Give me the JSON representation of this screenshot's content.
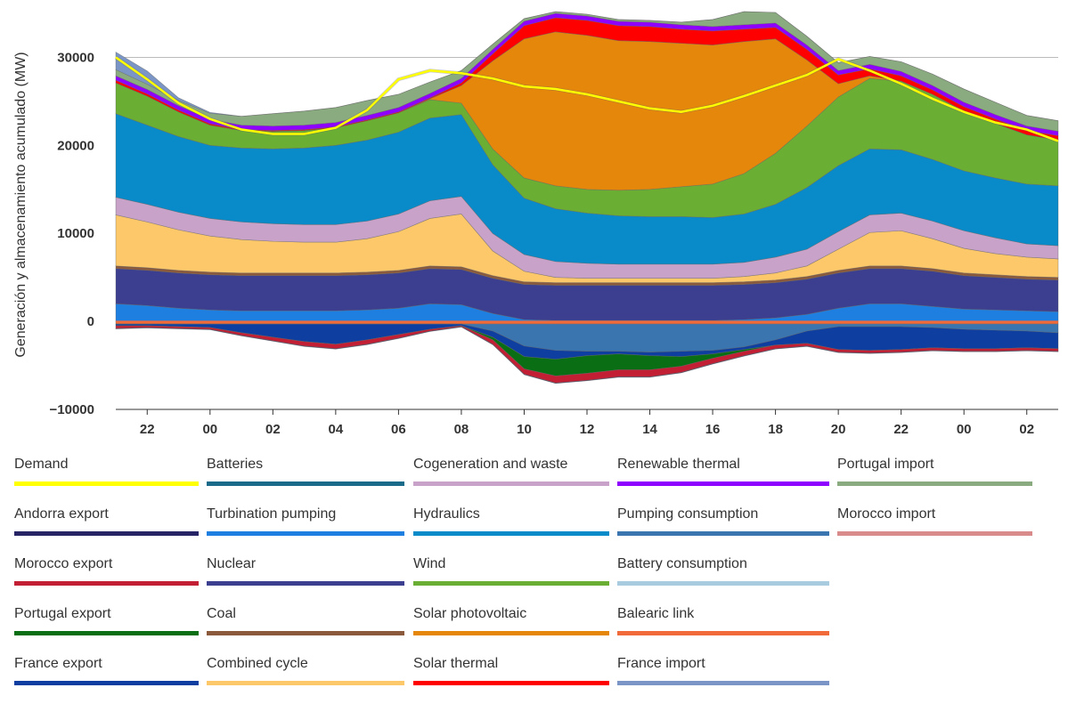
{
  "chart_data": {
    "type": "area",
    "ylabel": "Generación y almacenamiento acumulado (MW)",
    "ylim": [
      -10000,
      35000
    ],
    "grid": "horizontal",
    "yticks": [
      -10000,
      0,
      10000,
      20000,
      30000
    ],
    "ytick_labels": [
      "−10000",
      "0",
      "10000",
      "20000",
      "30000"
    ],
    "xlim": [
      21,
      51
    ],
    "xticks": [
      22,
      24,
      26,
      28,
      30,
      32,
      34,
      36,
      38,
      40,
      42,
      44,
      46,
      48,
      50
    ],
    "xtick_labels": [
      "22",
      "00",
      "02",
      "04",
      "06",
      "08",
      "10",
      "12",
      "14",
      "16",
      "18",
      "20",
      "22",
      "00",
      "02"
    ],
    "x": [
      21,
      22,
      23,
      24,
      25,
      26,
      27,
      28,
      29,
      30,
      31,
      32,
      33,
      34,
      35,
      36,
      37,
      38,
      39,
      40,
      41,
      42,
      43,
      44,
      45,
      46,
      47,
      48,
      49,
      50,
      51
    ],
    "positive_series": [
      {
        "name": "Turbination pumping",
        "color": "#1f7fe0",
        "values": [
          2000,
          1800,
          1500,
          1300,
          1200,
          1200,
          1200,
          1200,
          1300,
          1500,
          2000,
          1900,
          900,
          200,
          100,
          100,
          100,
          100,
          100,
          100,
          200,
          400,
          800,
          1500,
          2000,
          2000,
          1700,
          1400,
          1300,
          1200,
          1100
        ]
      },
      {
        "name": "Nuclear",
        "color": "#3c3f8f",
        "values": [
          4000,
          4000,
          4000,
          4000,
          4000,
          4000,
          4000,
          4000,
          4000,
          4000,
          4000,
          4000,
          4000,
          4000,
          4000,
          4000,
          4000,
          4000,
          4000,
          4000,
          4000,
          4000,
          4000,
          4000,
          4000,
          4000,
          4000,
          3800,
          3700,
          3600,
          3600
        ]
      },
      {
        "name": "Coal",
        "color": "#8b5a3c",
        "values": [
          300,
          300,
          300,
          300,
          300,
          300,
          300,
          300,
          300,
          300,
          300,
          300,
          300,
          300,
          300,
          300,
          300,
          300,
          300,
          300,
          300,
          300,
          300,
          300,
          300,
          300,
          300,
          300,
          300,
          300,
          300
        ]
      },
      {
        "name": "Combined cycle",
        "color": "#fdc86a",
        "values": [
          5800,
          5200,
          4600,
          4100,
          3800,
          3600,
          3500,
          3500,
          3800,
          4400,
          5400,
          6000,
          2800,
          1200,
          600,
          500,
          500,
          500,
          500,
          500,
          600,
          800,
          1200,
          2400,
          3800,
          4000,
          3400,
          2800,
          2400,
          2200,
          2100
        ]
      },
      {
        "name": "Cogeneration and waste",
        "color": "#c8a2c8",
        "values": [
          2000,
          2000,
          2000,
          2000,
          2000,
          2000,
          2000,
          2000,
          2000,
          2000,
          2000,
          2000,
          2000,
          1900,
          1800,
          1700,
          1600,
          1600,
          1600,
          1600,
          1600,
          1800,
          1900,
          2000,
          2000,
          2000,
          2000,
          2000,
          1800,
          1500,
          1500
        ]
      },
      {
        "name": "Hydraulics",
        "color": "#0a8bc9",
        "values": [
          9500,
          9000,
          8600,
          8300,
          8400,
          8500,
          8700,
          9000,
          9200,
          9300,
          9400,
          9300,
          7800,
          6400,
          6000,
          5700,
          5500,
          5400,
          5400,
          5300,
          5500,
          6000,
          7000,
          7500,
          7500,
          7200,
          7000,
          6800,
          6800,
          6800,
          6800
        ]
      },
      {
        "name": "Wind",
        "color": "#6aae33",
        "values": [
          3500,
          3300,
          2800,
          2300,
          2000,
          2000,
          2000,
          2000,
          2200,
          2200,
          2100,
          1300,
          1800,
          2300,
          2600,
          2700,
          2900,
          3100,
          3400,
          3800,
          4600,
          5800,
          7000,
          7800,
          8000,
          7800,
          7400,
          6800,
          6200,
          5600,
          5200
        ]
      },
      {
        "name": "Solar photovoltaic",
        "color": "#e5870a",
        "values": [
          0,
          0,
          0,
          0,
          0,
          0,
          0,
          0,
          0,
          0,
          100,
          2000,
          10000,
          15800,
          17500,
          17500,
          17000,
          16800,
          16300,
          15800,
          15000,
          13000,
          7500,
          1500,
          300,
          0,
          0,
          0,
          0,
          0,
          0
        ]
      },
      {
        "name": "Solar thermal",
        "color": "#ff0000",
        "values": [
          300,
          250,
          200,
          150,
          100,
          100,
          100,
          100,
          100,
          100,
          100,
          300,
          800,
          1500,
          1600,
          1700,
          1700,
          1700,
          1600,
          1600,
          1400,
          1300,
          1200,
          1000,
          800,
          600,
          500,
          500,
          500,
          500,
          500
        ]
      },
      {
        "name": "Renewable thermal",
        "color": "#8e00ff",
        "values": [
          500,
          500,
          500,
          500,
          500,
          500,
          500,
          500,
          500,
          500,
          500,
          500,
          500,
          500,
          500,
          500,
          500,
          500,
          500,
          500,
          500,
          500,
          500,
          500,
          500,
          500,
          500,
          500,
          500,
          500,
          500
        ]
      },
      {
        "name": "Portugal import",
        "color": "#8aaa80",
        "values": [
          700,
          600,
          600,
          700,
          1000,
          1400,
          1600,
          1700,
          1700,
          1500,
          1300,
          900,
          600,
          300,
          200,
          200,
          200,
          200,
          300,
          800,
          1500,
          1200,
          1000,
          900,
          900,
          1100,
          1300,
          1500,
          1400,
          1200,
          1200
        ]
      },
      {
        "name": "France import",
        "color": "#7b96c6",
        "values": [
          2000,
          1500,
          300,
          100,
          0,
          0,
          0,
          0,
          0,
          0,
          0,
          0,
          0,
          0,
          0,
          0,
          0,
          0,
          0,
          0,
          0,
          0,
          0,
          0,
          0,
          0,
          0,
          0,
          0,
          0,
          0
        ]
      }
    ],
    "negative_series": [
      {
        "name": "Balearic link",
        "color": "#f06a3a",
        "values": [
          -300,
          -300,
          -300,
          -300,
          -300,
          -300,
          -300,
          -300,
          -300,
          -300,
          -300,
          -300,
          -300,
          -300,
          -300,
          -300,
          -300,
          -300,
          -300,
          -300,
          -300,
          -300,
          -300,
          -300,
          -300,
          -300,
          -300,
          -300,
          -300,
          -300,
          -300
        ]
      },
      {
        "name": "Pumping consumption",
        "color": "#3a75b0",
        "values": [
          0,
          0,
          0,
          0,
          0,
          0,
          0,
          0,
          0,
          0,
          0,
          0,
          -800,
          -2500,
          -3000,
          -3100,
          -3100,
          -3200,
          -3100,
          -3000,
          -2600,
          -1800,
          -800,
          -300,
          -300,
          -300,
          -400,
          -600,
          -700,
          -800,
          -1000
        ]
      },
      {
        "name": "France export",
        "color": "#0e3fa0",
        "values": [
          -200,
          -200,
          -300,
          -400,
          -1000,
          -1500,
          -2000,
          -2300,
          -1800,
          -1200,
          -600,
          -200,
          -700,
          -1200,
          -1000,
          -500,
          -300,
          -400,
          -600,
          -400,
          -300,
          -600,
          -1400,
          -2600,
          -2700,
          -2600,
          -2300,
          -2200,
          -2100,
          -1900,
          -1800
        ]
      },
      {
        "name": "Portugal export",
        "color": "#0a6e14",
        "values": [
          0,
          0,
          0,
          0,
          0,
          0,
          0,
          0,
          0,
          0,
          0,
          0,
          -300,
          -1400,
          -1900,
          -2000,
          -1800,
          -1600,
          -1100,
          -500,
          -200,
          0,
          0,
          0,
          0,
          0,
          0,
          0,
          0,
          0,
          0
        ]
      },
      {
        "name": "Battery consumption",
        "color": "#a8cbe0",
        "values": [
          0,
          0,
          0,
          0,
          0,
          0,
          0,
          0,
          0,
          0,
          0,
          0,
          0,
          0,
          0,
          0,
          0,
          0,
          0,
          0,
          0,
          0,
          0,
          0,
          0,
          0,
          0,
          0,
          0,
          0,
          0
        ]
      },
      {
        "name": "Morocco export",
        "color": "#c21e34",
        "values": [
          -300,
          -200,
          -200,
          -200,
          -300,
          -400,
          -500,
          -500,
          -500,
          -400,
          -200,
          -100,
          -500,
          -600,
          -800,
          -800,
          -800,
          -800,
          -700,
          -600,
          -500,
          -400,
          -300,
          -300,
          -300,
          -300,
          -300,
          -300,
          -300,
          -300,
          -300
        ]
      },
      {
        "name": "Andorra export",
        "color": "#262464",
        "values": [
          -50,
          -50,
          -50,
          -50,
          -50,
          -50,
          -50,
          -50,
          -50,
          -50,
          -50,
          -50,
          -50,
          -50,
          -50,
          -50,
          -50,
          -50,
          -50,
          -50,
          -50,
          -50,
          -50,
          -50,
          -50,
          -50,
          -50,
          -50,
          -50,
          -50,
          -50
        ]
      }
    ],
    "demand": {
      "name": "Demand",
      "color": "#ffff00",
      "values": [
        30000,
        27500,
        24800,
        23000,
        21800,
        21300,
        21300,
        22000,
        24000,
        27500,
        28500,
        28200,
        27600,
        26700,
        26400,
        25800,
        25000,
        24200,
        23800,
        24500,
        25600,
        26800,
        28000,
        29800,
        28500,
        27000,
        25300,
        23800,
        22600,
        21800,
        20500
      ]
    }
  },
  "legend": {
    "items": [
      {
        "label": "Demand",
        "color": "#ffff00"
      },
      {
        "label": "Batteries",
        "color": "#1a6a8a"
      },
      {
        "label": "Cogeneration and waste",
        "color": "#c8a2c8"
      },
      {
        "label": "Renewable thermal",
        "color": "#8e00ff"
      },
      {
        "label": "Portugal import",
        "color": "#8aaa80"
      },
      {
        "label": "Andorra export",
        "color": "#262464"
      },
      {
        "label": "Turbination pumping",
        "color": "#1f7fe0"
      },
      {
        "label": "Hydraulics",
        "color": "#0a8bc9"
      },
      {
        "label": "Pumping consumption",
        "color": "#3a75b0"
      },
      {
        "label": "Morocco import",
        "color": "#d98a8a"
      },
      {
        "label": "Morocco export",
        "color": "#c21e34"
      },
      {
        "label": "Nuclear",
        "color": "#3c3f8f"
      },
      {
        "label": "Wind",
        "color": "#6aae33"
      },
      {
        "label": "Battery consumption",
        "color": "#a8cbe0"
      },
      {
        "label": "Portugal export",
        "color": "#0a6e14"
      },
      {
        "label": "Coal",
        "color": "#8b5a3c"
      },
      {
        "label": "Solar photovoltaic",
        "color": "#e5870a"
      },
      {
        "label": "Balearic link",
        "color": "#f06a3a"
      },
      {
        "label": "France export",
        "color": "#0e3fa0"
      },
      {
        "label": "Combined cycle",
        "color": "#fdc86a"
      },
      {
        "label": "Solar thermal",
        "color": "#ff0000"
      },
      {
        "label": "France import",
        "color": "#7b96c6"
      }
    ]
  }
}
